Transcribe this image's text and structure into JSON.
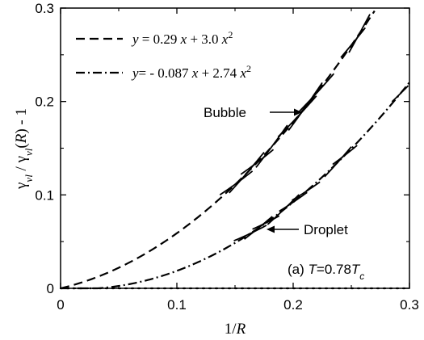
{
  "chart_data": {
    "type": "line",
    "xlabel_prefix": "1/",
    "xlabel_var": "R",
    "ylabel": "γvl / γvl(R) - 1",
    "xlim": [
      0,
      0.3
    ],
    "ylim": [
      0,
      0.3
    ],
    "x_ticks": [
      "0",
      "0.1",
      "0.2",
      "0.3"
    ],
    "y_ticks": [
      "0",
      "0.1",
      "0.2",
      "0.3"
    ],
    "x_tick_values": [
      0,
      0.1,
      0.2,
      0.3
    ],
    "y_tick_values": [
      0,
      0.1,
      0.2,
      0.3
    ],
    "grid": false,
    "legend_position": "top-left",
    "series": [
      {
        "name": "y = 0.29 x + 3.0 x²",
        "style": "dashed",
        "label": "Bubble",
        "a": 0.29,
        "b": 3.0,
        "x_range": [
          0,
          0.27
        ]
      },
      {
        "name": "y= - 0.087 x + 2.74 x²",
        "style": "dash-dot",
        "label": "Droplet",
        "a": -0.087,
        "b": 2.74,
        "x_range": [
          0,
          0.3
        ]
      }
    ],
    "data_segments": {
      "bubble": [
        [
          0.137,
          0.165
        ],
        [
          0.145,
          0.175
        ],
        [
          0.155,
          0.183
        ],
        [
          0.168,
          0.195
        ],
        [
          0.187,
          0.22
        ],
        [
          0.196,
          0.225
        ],
        [
          0.203,
          0.235
        ],
        [
          0.241,
          0.262
        ],
        [
          0.248,
          0.266
        ]
      ],
      "droplet": [
        [
          0.149,
          0.177
        ],
        [
          0.158,
          0.182
        ],
        [
          0.165,
          0.188
        ],
        [
          0.178,
          0.205
        ],
        [
          0.188,
          0.212
        ],
        [
          0.199,
          0.223
        ],
        [
          0.227,
          0.25
        ],
        [
          0.234,
          0.255
        ],
        [
          0.285,
          0.299
        ]
      ]
    },
    "reference_line": {
      "y": 0,
      "style": "dotted"
    },
    "annotations": {
      "bubble": "Bubble",
      "droplet": "Droplet",
      "temperature_prefix": "(a) ",
      "temperature_var": "T",
      "temperature_eq": "=0.78",
      "temperature_tc": "T",
      "temperature_sub": "c"
    }
  }
}
